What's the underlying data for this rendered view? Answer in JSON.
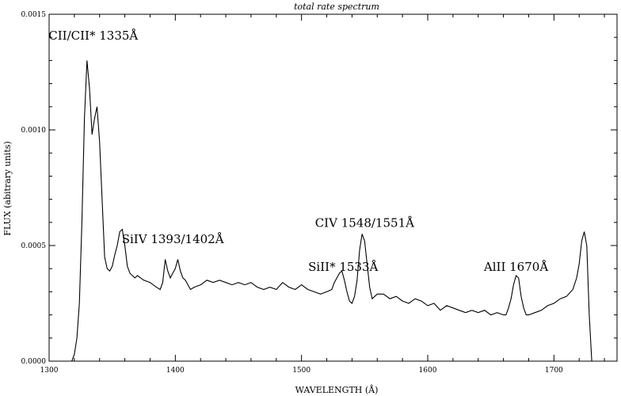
{
  "chart_data": {
    "type": "line",
    "title": "total rate spectrum",
    "xlabel": "WAVELENGTH (Å)",
    "ylabel": "FLUX (abitrary units)",
    "xlim": [
      1300,
      1750
    ],
    "ylim": [
      0,
      0.0015
    ],
    "xtick_values": [
      1300,
      1400,
      1500,
      1600,
      1700
    ],
    "xtick_labels": [
      "1300",
      "1400",
      "1500",
      "1600",
      "1700"
    ],
    "ytick_values": [
      0,
      0.0005,
      0.001,
      0.0015
    ],
    "ytick_labels": [
      "0.0000",
      "0.0005",
      "0.0010",
      "0.0015"
    ],
    "grid": false,
    "annotations": [
      {
        "text": "CII/CII* 1335Å",
        "x": 1335,
        "y": 0.00139
      },
      {
        "text": "SiIV 1393/1402Å",
        "x": 1398,
        "y": 0.00051
      },
      {
        "text": "SiII* 1533Å",
        "x": 1533,
        "y": 0.00039
      },
      {
        "text": "CIV 1548/1551Å",
        "x": 1550,
        "y": 0.00058
      },
      {
        "text": "AlII 1670Å",
        "x": 1670,
        "y": 0.00039
      }
    ],
    "series": [
      {
        "x": [
          1318,
          1320,
          1322,
          1324,
          1326,
          1328,
          1330,
          1332,
          1334,
          1336,
          1338,
          1340,
          1342,
          1344,
          1346,
          1348,
          1350,
          1352,
          1354,
          1356,
          1358,
          1360,
          1362,
          1364,
          1366,
          1368,
          1370,
          1375,
          1380,
          1385,
          1388,
          1390,
          1392,
          1394,
          1396,
          1398,
          1400,
          1402,
          1404,
          1406,
          1408,
          1410,
          1412,
          1415,
          1420,
          1425,
          1430,
          1435,
          1440,
          1445,
          1450,
          1455,
          1460,
          1465,
          1470,
          1475,
          1480,
          1485,
          1490,
          1495,
          1500,
          1505,
          1510,
          1515,
          1520,
          1524,
          1526,
          1528,
          1530,
          1532,
          1534,
          1536,
          1538,
          1540,
          1542,
          1544,
          1546,
          1548,
          1550,
          1552,
          1554,
          1556,
          1558,
          1560,
          1565,
          1570,
          1575,
          1580,
          1585,
          1590,
          1595,
          1600,
          1605,
          1610,
          1615,
          1620,
          1625,
          1630,
          1635,
          1640,
          1645,
          1650,
          1655,
          1660,
          1662,
          1664,
          1666,
          1668,
          1670,
          1672,
          1674,
          1676,
          1678,
          1680,
          1685,
          1690,
          1695,
          1700,
          1705,
          1710,
          1715,
          1718,
          1720,
          1722,
          1724,
          1726,
          1728,
          1730
        ],
        "y": [
          0.0,
          3e-05,
          0.0001,
          0.00025,
          0.0006,
          0.00105,
          0.0013,
          0.00118,
          0.00098,
          0.00105,
          0.0011,
          0.00095,
          0.0007,
          0.00045,
          0.0004,
          0.00039,
          0.00041,
          0.00046,
          0.0005,
          0.00056,
          0.00057,
          0.0005,
          0.00041,
          0.00038,
          0.00037,
          0.00036,
          0.00037,
          0.00035,
          0.00034,
          0.00032,
          0.00031,
          0.00034,
          0.00044,
          0.00039,
          0.00036,
          0.00038,
          0.0004,
          0.00044,
          0.00039,
          0.00036,
          0.00035,
          0.00033,
          0.00031,
          0.00032,
          0.00033,
          0.00035,
          0.00034,
          0.00035,
          0.00034,
          0.00033,
          0.00034,
          0.00033,
          0.00034,
          0.00032,
          0.00031,
          0.00032,
          0.00031,
          0.00034,
          0.00032,
          0.00031,
          0.00033,
          0.00031,
          0.0003,
          0.00029,
          0.0003,
          0.00031,
          0.00034,
          0.00036,
          0.00038,
          0.00039,
          0.00035,
          0.0003,
          0.00026,
          0.00025,
          0.00028,
          0.00035,
          0.00048,
          0.00055,
          0.00052,
          0.00042,
          0.00032,
          0.00027,
          0.00028,
          0.00029,
          0.00029,
          0.00027,
          0.00028,
          0.00026,
          0.00025,
          0.00027,
          0.00026,
          0.00024,
          0.00025,
          0.00022,
          0.00024,
          0.00023,
          0.00022,
          0.00021,
          0.00022,
          0.00021,
          0.00022,
          0.0002,
          0.00021,
          0.0002,
          0.0002,
          0.00023,
          0.00027,
          0.00033,
          0.00037,
          0.00036,
          0.00028,
          0.00023,
          0.0002,
          0.0002,
          0.00021,
          0.00022,
          0.00024,
          0.00025,
          0.00027,
          0.00028,
          0.00031,
          0.00036,
          0.00042,
          0.00052,
          0.00056,
          0.0005,
          0.0002,
          0.0
        ]
      }
    ]
  }
}
